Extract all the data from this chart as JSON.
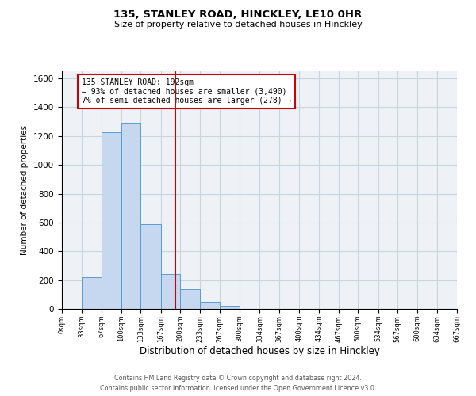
{
  "title": "135, STANLEY ROAD, HINCKLEY, LE10 0HR",
  "subtitle": "Size of property relative to detached houses in Hinckley",
  "xlabel": "Distribution of detached houses by size in Hinckley",
  "ylabel": "Number of detached properties",
  "bin_edges": [
    0,
    33,
    67,
    100,
    133,
    167,
    200,
    233,
    267,
    300,
    334,
    367,
    400,
    434,
    467,
    500,
    534,
    567,
    600,
    634,
    667
  ],
  "bar_heights": [
    0,
    220,
    1225,
    1290,
    590,
    240,
    140,
    50,
    20,
    0,
    0,
    0,
    0,
    0,
    0,
    0,
    0,
    0,
    0,
    0
  ],
  "bar_color": "#c5d8f0",
  "bar_edge_color": "#5b9bd5",
  "vline_x": 192,
  "vline_color": "#cc0000",
  "annotation_line1": "135 STANLEY ROAD: 192sqm",
  "annotation_line2": "← 93% of detached houses are smaller (3,490)",
  "annotation_line3": "7% of semi-detached houses are larger (278) →",
  "annotation_box_color": "#cc0000",
  "ylim": [
    0,
    1650
  ],
  "yticks": [
    0,
    200,
    400,
    600,
    800,
    1000,
    1200,
    1400,
    1600
  ],
  "xtick_labels": [
    "0sqm",
    "33sqm",
    "67sqm",
    "100sqm",
    "133sqm",
    "167sqm",
    "200sqm",
    "233sqm",
    "267sqm",
    "300sqm",
    "334sqm",
    "367sqm",
    "400sqm",
    "434sqm",
    "467sqm",
    "500sqm",
    "534sqm",
    "567sqm",
    "600sqm",
    "634sqm",
    "667sqm"
  ],
  "grid_color": "#c8d4e0",
  "bg_color": "#eef2f7",
  "footnote1": "Contains HM Land Registry data © Crown copyright and database right 2024.",
  "footnote2": "Contains public sector information licensed under the Open Government Licence v3.0."
}
